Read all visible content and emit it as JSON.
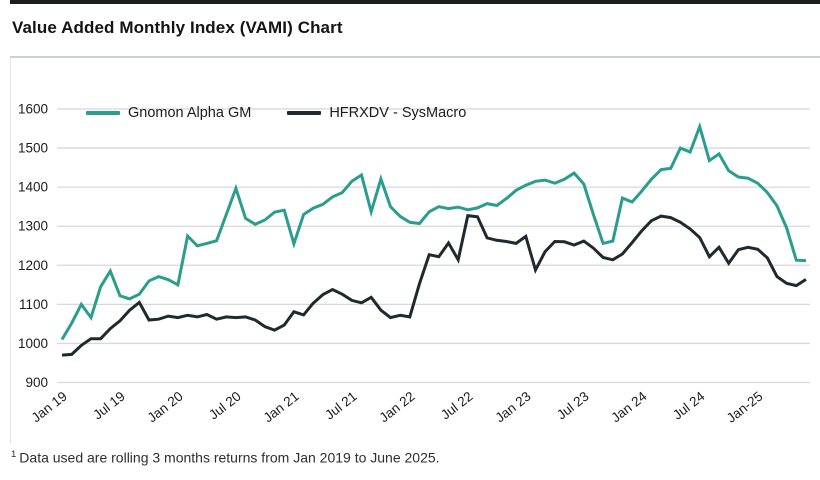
{
  "page": {
    "title": "Value Added Monthly Index (VAMI) Chart",
    "footnote_superscript": "1",
    "footnote_text": "Data used are rolling 3 months returns from Jan 2019 to June 2025."
  },
  "legend": [
    {
      "label": "Gnomon Alpha GM",
      "color": "#2a9d8f"
    },
    {
      "label": "HFRXDV - SysMacro",
      "color": "#1f2a2e"
    }
  ],
  "chart_data": {
    "type": "line",
    "title": "Value Added Monthly Index (VAMI) Chart",
    "x_unit": "month",
    "x_start": "Jan 2019",
    "x_end": "Jun 2025",
    "points_per_series": 78,
    "x_tick_labels": [
      "Jan 19",
      "Jul 19",
      "Jan 20",
      "Jul 20",
      "Jan 21",
      "Jul 21",
      "Jan 22",
      "Jul 22",
      "Jan 23",
      "Jul 23",
      "Jan 24",
      "Jul 24",
      "Jan-25"
    ],
    "x_tick_month_indices": [
      0,
      6,
      12,
      18,
      24,
      30,
      36,
      42,
      48,
      54,
      60,
      66,
      72
    ],
    "y_ticks": [
      900,
      1000,
      1100,
      1200,
      1300,
      1400,
      1500,
      1600
    ],
    "ylim": [
      900,
      1600
    ],
    "grid": "horizontal-only",
    "legend_position": "top-left-inside",
    "grid_color": "#d8d8d8",
    "axis_text_color": "#1c1c1c",
    "series": [
      {
        "name": "Gnomon Alpha GM",
        "color": "#2a9d8f",
        "values": [
          1010,
          1052,
          1100,
          1066,
          1145,
          1185,
          1122,
          1114,
          1126,
          1160,
          1171,
          1163,
          1150,
          1275,
          1250,
          1256,
          1263,
          1330,
          1397,
          1320,
          1305,
          1316,
          1336,
          1341,
          1255,
          1330,
          1346,
          1356,
          1375,
          1386,
          1415,
          1431,
          1337,
          1421,
          1350,
          1325,
          1310,
          1307,
          1337,
          1350,
          1345,
          1349,
          1342,
          1347,
          1358,
          1353,
          1371,
          1392,
          1405,
          1415,
          1418,
          1410,
          1420,
          1436,
          1408,
          1330,
          1256,
          1262,
          1372,
          1362,
          1390,
          1420,
          1445,
          1448,
          1500,
          1490,
          1555,
          1468,
          1485,
          1442,
          1426,
          1423,
          1410,
          1386,
          1352,
          1295,
          1213,
          1212
        ]
      },
      {
        "name": "HFRXDV - SysMacro",
        "color": "#1f2a2e",
        "values": [
          970,
          972,
          995,
          1012,
          1012,
          1038,
          1058,
          1085,
          1105,
          1060,
          1062,
          1070,
          1066,
          1072,
          1068,
          1074,
          1062,
          1068,
          1066,
          1068,
          1060,
          1043,
          1034,
          1047,
          1081,
          1073,
          1103,
          1125,
          1138,
          1126,
          1110,
          1104,
          1118,
          1085,
          1066,
          1072,
          1068,
          1153,
          1227,
          1222,
          1257,
          1214,
          1327,
          1324,
          1270,
          1264,
          1261,
          1256,
          1274,
          1188,
          1235,
          1261,
          1260,
          1252,
          1262,
          1244,
          1220,
          1214,
          1229,
          1258,
          1288,
          1314,
          1326,
          1322,
          1310,
          1293,
          1271,
          1222,
          1246,
          1205,
          1240,
          1246,
          1241,
          1219,
          1171,
          1154,
          1148,
          1164
        ]
      }
    ]
  }
}
